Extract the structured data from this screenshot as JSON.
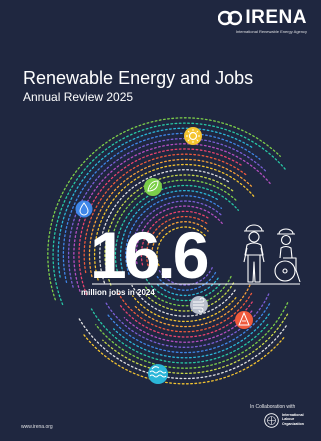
{
  "brand": {
    "name": "IRENA",
    "tagline": "International Renewable Energy Agency"
  },
  "cover": {
    "title": "Renewable Energy and Jobs",
    "subtitle": "Annual Review 2025",
    "headline_number": "16.6",
    "headline_caption": "million jobs in 2024"
  },
  "footer": {
    "url": "www.irena.org",
    "collaboration_label": "In Collaboration with",
    "partner": {
      "line1": "International",
      "line2": "Labour",
      "line3": "Organization"
    }
  },
  "icons": [
    "solar-icon",
    "bioenergy-leaf-icon",
    "hydropower-drop-icon",
    "wind-icon",
    "geothermal-icon",
    "ocean-wave-icon",
    "worker-figure-icon",
    "wheelchair-user-icon"
  ],
  "colors": {
    "background": "#1f2740",
    "arcs": [
      "#f4c430",
      "#f7a13a",
      "#ef5a3c",
      "#e8436e",
      "#b44fc2",
      "#7b5fd6",
      "#3f86e8",
      "#2bb6d8",
      "#27c9a6",
      "#7ccf4a",
      "#c8d94a",
      "#e0e0e0"
    ]
  }
}
